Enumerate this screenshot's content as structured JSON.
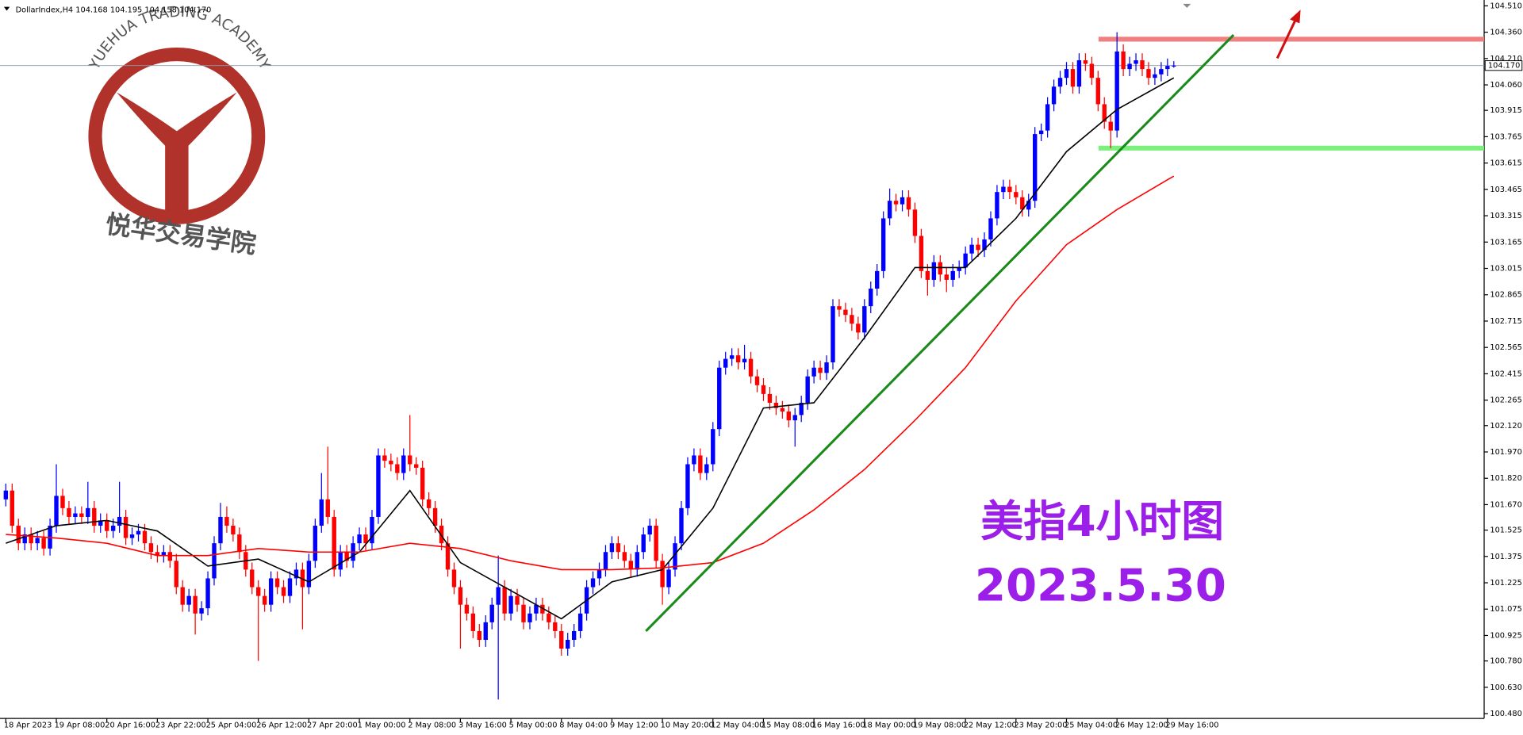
{
  "chart_data": {
    "type": "candlestick",
    "header": "DollarIndex,H4  104.168 104.195 104.158 104.170",
    "overlay_title": "美指4小时图",
    "overlay_date": "2023.5.30",
    "watermark": {
      "arc_text": "YUEHUA TRADING ACADEMY",
      "name": "悦华交易学院"
    },
    "up_color": "#0000ff",
    "down_color": "#ff0000",
    "ylim": [
      100.48,
      104.51
    ],
    "yticks": [
      {
        "value": 104.51,
        "label": "104.510"
      },
      {
        "value": 104.36,
        "label": "104.360"
      },
      {
        "value": 104.21,
        "label": "104.210"
      },
      {
        "value": 104.06,
        "label": "104.060"
      },
      {
        "value": 103.915,
        "label": "103.915"
      },
      {
        "value": 103.765,
        "label": "103.765"
      },
      {
        "value": 103.615,
        "label": "103.615"
      },
      {
        "value": 103.465,
        "label": "103.465"
      },
      {
        "value": 103.315,
        "label": "103.315"
      },
      {
        "value": 103.165,
        "label": "103.165"
      },
      {
        "value": 103.015,
        "label": "103.015"
      },
      {
        "value": 102.865,
        "label": "102.865"
      },
      {
        "value": 102.715,
        "label": "102.715"
      },
      {
        "value": 102.565,
        "label": "102.565"
      },
      {
        "value": 102.415,
        "label": "102.415"
      },
      {
        "value": 102.265,
        "label": "102.265"
      },
      {
        "value": 102.12,
        "label": "102.120"
      },
      {
        "value": 101.97,
        "label": "101.970"
      },
      {
        "value": 101.82,
        "label": "101.820"
      },
      {
        "value": 101.67,
        "label": "101.670"
      },
      {
        "value": 101.525,
        "label": "101.525"
      },
      {
        "value": 101.375,
        "label": "101.375"
      },
      {
        "value": 101.225,
        "label": "101.225"
      },
      {
        "value": 101.075,
        "label": "101.075"
      },
      {
        "value": 100.925,
        "label": "100.925"
      },
      {
        "value": 100.78,
        "label": "100.780"
      },
      {
        "value": 100.63,
        "label": "100.630"
      },
      {
        "value": 100.48,
        "label": "100.480"
      }
    ],
    "last_price": {
      "value": 104.17,
      "label": "104.170"
    },
    "levels": [
      {
        "value": 104.32,
        "color": "#f08080"
      },
      {
        "value": 103.7,
        "color": "#7cf07c"
      }
    ],
    "categories": [
      "18 Apr 2023",
      null,
      null,
      null,
      null,
      null,
      null,
      null,
      "19 Apr 08:00",
      null,
      null,
      null,
      null,
      null,
      null,
      null,
      "20 Apr 16:00",
      null,
      null,
      null,
      null,
      null,
      null,
      null,
      "23 Apr 22:00",
      null,
      null,
      null,
      null,
      null,
      null,
      null,
      "25 Apr 04:00",
      null,
      null,
      null,
      null,
      null,
      null,
      null,
      "26 Apr 12:00",
      null,
      null,
      null,
      null,
      null,
      null,
      null,
      "27 Apr 20:00",
      null,
      null,
      null,
      null,
      null,
      null,
      null,
      "1 May 00:00",
      null,
      null,
      null,
      null,
      null,
      null,
      null,
      "2 May 08:00",
      null,
      null,
      null,
      null,
      null,
      null,
      null,
      "3 May 16:00",
      null,
      null,
      null,
      null,
      null,
      null,
      null,
      "5 May 00:00",
      null,
      null,
      null,
      null,
      null,
      null,
      null,
      "8 May 04:00",
      null,
      null,
      null,
      null,
      null,
      null,
      null,
      "9 May 12:00",
      null,
      null,
      null,
      null,
      null,
      null,
      null,
      "10 May 20:00",
      null,
      null,
      null,
      null,
      null,
      null,
      null,
      "12 May 04:00",
      null,
      null,
      null,
      null,
      null,
      null,
      null,
      "15 May 08:00",
      null,
      null,
      null,
      null,
      null,
      null,
      null,
      "16 May 16:00",
      null,
      null,
      null,
      null,
      null,
      null,
      null,
      "18 May 00:00",
      null,
      null,
      null,
      null,
      null,
      null,
      null,
      "19 May 08:00",
      null,
      null,
      null,
      null,
      null,
      null,
      null,
      "22 May 12:00",
      null,
      null,
      null,
      null,
      null,
      null,
      null,
      "23 May 20:00",
      null,
      null,
      null,
      null,
      null,
      null,
      null,
      "25 May 04:00",
      null,
      null,
      null,
      null,
      null,
      null,
      null,
      "26 May 12:00",
      null,
      null,
      null,
      null,
      null,
      null,
      null,
      "29 May 16:00",
      null
    ],
    "open": [
      101.7,
      101.75,
      101.55,
      101.45,
      101.5,
      101.45,
      101.48,
      101.42,
      101.55,
      101.72,
      101.65,
      101.6,
      101.62,
      101.6,
      101.65,
      101.55,
      101.58,
      101.52,
      101.55,
      101.6,
      101.48,
      101.5,
      101.52,
      101.45,
      101.4,
      101.38,
      101.4,
      101.35,
      101.2,
      101.1,
      101.15,
      101.05,
      101.08,
      101.25,
      101.45,
      101.6,
      101.55,
      101.5,
      101.4,
      101.3,
      101.2,
      101.15,
      101.1,
      101.25,
      101.2,
      101.15,
      101.25,
      101.3,
      101.2,
      101.35,
      101.55,
      101.7,
      101.6,
      101.3,
      101.4,
      101.35,
      101.45,
      101.5,
      101.45,
      101.6,
      101.95,
      101.92,
      101.9,
      101.85,
      101.95,
      101.9,
      101.88,
      101.7,
      101.65,
      101.55,
      101.45,
      101.3,
      101.2,
      101.1,
      101.05,
      100.95,
      100.9,
      101,
      101.1,
      101.2,
      101.05,
      101.15,
      101.1,
      101,
      101.05,
      101.1,
      101.05,
      101,
      100.95,
      100.85,
      100.9,
      100.95,
      101.05,
      101.2,
      101.25,
      101.3,
      101.4,
      101.45,
      101.4,
      101.35,
      101.3,
      101.4,
      101.5,
      101.55,
      101.35,
      101.2,
      101.3,
      101.45,
      101.65,
      101.9,
      101.95,
      101.85,
      101.9,
      102.1,
      102.45,
      102.5,
      102.52,
      102.48,
      102.5,
      102.4,
      102.35,
      102.3,
      102.25,
      102.22,
      102.2,
      102.15,
      102.18,
      102.25,
      102.4,
      102.45,
      102.42,
      102.48,
      102.8,
      102.78,
      102.75,
      102.7,
      102.65,
      102.8,
      102.9,
      103,
      103.3,
      103.4,
      103.38,
      103.42,
      103.35,
      103.2,
      103,
      102.95,
      103.05,
      102.98,
      102.95,
      103,
      103.02,
      103.1,
      103.15,
      103.12,
      103.18,
      103.3,
      103.45,
      103.48,
      103.45,
      103.42,
      103.35,
      103.4,
      103.78,
      103.8,
      103.95,
      104.05,
      104.1,
      104.15,
      104.05,
      104.2,
      104.18,
      104.1,
      103.95,
      103.85,
      103.8,
      104.25,
      104.15,
      104.18,
      104.2,
      104.15,
      104.1,
      104.12,
      104.15,
      104.168
    ],
    "high": [
      101.79,
      101.79,
      101.59,
      101.54,
      101.54,
      101.52,
      101.52,
      101.59,
      101.9,
      101.76,
      101.69,
      101.66,
      101.66,
      101.8,
      101.69,
      101.62,
      101.62,
      101.59,
      101.8,
      101.64,
      101.54,
      101.56,
      101.56,
      101.49,
      101.44,
      101.44,
      101.44,
      101.39,
      101.24,
      101.19,
      101.19,
      101.12,
      101.29,
      101.49,
      101.68,
      101.66,
      101.59,
      101.54,
      101.44,
      101.34,
      101.24,
      101.19,
      101.29,
      101.29,
      101.24,
      101.29,
      101.34,
      101.34,
      101.39,
      101.59,
      101.85,
      102,
      101.64,
      101.44,
      101.44,
      101.49,
      101.54,
      101.54,
      101.64,
      101.99,
      101.99,
      101.96,
      101.94,
      101.99,
      102.18,
      101.94,
      101.92,
      101.74,
      101.69,
      101.59,
      101.49,
      101.34,
      101.24,
      101.14,
      101.09,
      100.99,
      101.04,
      101.14,
      101.38,
      101.24,
      101.19,
      101.19,
      101.14,
      101.09,
      101.14,
      101.14,
      101.09,
      101.04,
      100.99,
      100.94,
      100.99,
      101.09,
      101.24,
      101.29,
      101.34,
      101.44,
      101.49,
      101.49,
      101.44,
      101.39,
      101.44,
      101.54,
      101.59,
      101.59,
      101.39,
      101.34,
      101.49,
      101.69,
      101.94,
      101.99,
      101.99,
      101.94,
      102.14,
      102.49,
      102.54,
      102.56,
      102.56,
      102.58,
      102.54,
      102.44,
      102.39,
      102.34,
      102.29,
      102.26,
      102.24,
      102.22,
      102.29,
      102.44,
      102.49,
      102.49,
      102.52,
      102.84,
      102.84,
      102.82,
      102.79,
      102.74,
      102.84,
      102.94,
      103.04,
      103.34,
      103.47,
      103.44,
      103.46,
      103.46,
      103.39,
      103.24,
      103.04,
      103.09,
      103.09,
      103.02,
      103.04,
      103.06,
      103.14,
      103.19,
      103.19,
      103.22,
      103.34,
      103.49,
      103.52,
      103.52,
      103.49,
      103.46,
      103.44,
      103.82,
      103.84,
      103.99,
      104.09,
      104.14,
      104.19,
      104.19,
      104.24,
      104.24,
      104.22,
      104.14,
      103.99,
      103.89,
      104.36,
      104.29,
      104.22,
      104.24,
      104.24,
      104.19,
      104.16,
      104.19,
      104.21,
      104.195
    ],
    "low": [
      101.66,
      101.51,
      101.41,
      101.41,
      101.41,
      101.41,
      101.38,
      101.38,
      101.51,
      101.61,
      101.56,
      101.56,
      101.56,
      101.56,
      101.51,
      101.51,
      101.48,
      101.48,
      101.51,
      101.44,
      101.44,
      101.46,
      101.41,
      101.36,
      101.34,
      101.34,
      101.31,
      101.16,
      101.06,
      101.06,
      100.93,
      101.01,
      101.04,
      101.21,
      101.41,
      101.51,
      101.46,
      101.36,
      101.26,
      101.16,
      100.78,
      101.06,
      101.06,
      101.16,
      101.11,
      101.11,
      101.21,
      100.96,
      101.16,
      101.31,
      101.51,
      101.56,
      101.26,
      101.26,
      101.31,
      101.31,
      101.41,
      101.41,
      101.41,
      101.56,
      101.88,
      101.86,
      101.81,
      101.81,
      101.86,
      101.84,
      101.66,
      101.61,
      101.51,
      101.41,
      101.26,
      101.16,
      100.85,
      101.01,
      100.91,
      100.86,
      100.86,
      100.96,
      100.56,
      101.01,
      101.01,
      101.06,
      100.96,
      100.96,
      101.01,
      101.01,
      100.96,
      100.91,
      100.81,
      100.81,
      100.86,
      100.91,
      101.01,
      101.16,
      101.21,
      101.26,
      101.36,
      101.36,
      101.31,
      101.26,
      101.26,
      101.36,
      101.46,
      101.31,
      101.1,
      101.16,
      101.26,
      101.41,
      101.61,
      101.86,
      101.81,
      101.81,
      101.86,
      102.06,
      102.41,
      102.46,
      102.44,
      102.44,
      102.36,
      102.31,
      102.26,
      102.21,
      102.18,
      102.16,
      102.11,
      102,
      102.14,
      102.21,
      102.36,
      102.38,
      102.38,
      102.44,
      102.74,
      102.71,
      102.66,
      102.61,
      102.61,
      102.76,
      102.86,
      102.96,
      103.26,
      103.34,
      103.34,
      103.31,
      103.16,
      102.96,
      102.86,
      102.91,
      102.94,
      102.88,
      102.91,
      102.96,
      102.98,
      103.06,
      103.08,
      103.08,
      103.14,
      103.26,
      103.41,
      103.41,
      103.38,
      103.31,
      103.31,
      103.36,
      103.74,
      103.76,
      103.91,
      104.01,
      104.06,
      104.01,
      104.01,
      104.14,
      104.06,
      103.91,
      103.81,
      103.7,
      103.76,
      104.11,
      104.11,
      104.14,
      104.11,
      104.06,
      104.06,
      104.08,
      104.11,
      104.158
    ],
    "close": [
      101.75,
      101.55,
      101.45,
      101.5,
      101.45,
      101.48,
      101.42,
      101.55,
      101.72,
      101.65,
      101.6,
      101.62,
      101.6,
      101.65,
      101.55,
      101.58,
      101.52,
      101.55,
      101.6,
      101.48,
      101.5,
      101.52,
      101.45,
      101.4,
      101.38,
      101.4,
      101.35,
      101.2,
      101.1,
      101.15,
      101.05,
      101.08,
      101.25,
      101.45,
      101.6,
      101.55,
      101.5,
      101.4,
      101.3,
      101.2,
      101.15,
      101.1,
      101.25,
      101.2,
      101.15,
      101.25,
      101.3,
      101.2,
      101.35,
      101.55,
      101.7,
      101.6,
      101.3,
      101.4,
      101.35,
      101.45,
      101.5,
      101.45,
      101.6,
      101.95,
      101.92,
      101.9,
      101.85,
      101.95,
      101.9,
      101.88,
      101.7,
      101.65,
      101.55,
      101.45,
      101.3,
      101.2,
      101.1,
      101.05,
      100.95,
      100.9,
      101,
      101.1,
      101.2,
      101.05,
      101.15,
      101.1,
      101,
      101.05,
      101.1,
      101.05,
      101,
      100.95,
      100.85,
      100.9,
      100.95,
      101.05,
      101.2,
      101.25,
      101.3,
      101.4,
      101.45,
      101.4,
      101.35,
      101.3,
      101.4,
      101.5,
      101.55,
      101.35,
      101.2,
      101.3,
      101.45,
      101.65,
      101.9,
      101.95,
      101.85,
      101.9,
      102.1,
      102.45,
      102.5,
      102.52,
      102.48,
      102.5,
      102.4,
      102.35,
      102.3,
      102.25,
      102.22,
      102.2,
      102.15,
      102.18,
      102.25,
      102.4,
      102.45,
      102.42,
      102.48,
      102.8,
      102.78,
      102.75,
      102.7,
      102.65,
      102.8,
      102.9,
      103,
      103.3,
      103.4,
      103.38,
      103.42,
      103.35,
      103.2,
      103,
      102.95,
      103.05,
      102.98,
      102.95,
      103,
      103.02,
      103.1,
      103.15,
      103.12,
      103.18,
      103.3,
      103.45,
      103.48,
      103.45,
      103.42,
      103.35,
      103.4,
      103.78,
      103.8,
      103.95,
      104.05,
      104.1,
      104.15,
      104.05,
      104.2,
      104.18,
      104.1,
      103.95,
      103.85,
      103.8,
      104.25,
      104.15,
      104.18,
      104.2,
      104.15,
      104.1,
      104.12,
      104.15,
      104.168,
      104.17
    ],
    "series": [
      {
        "color": "#000000",
        "x": [
          0,
          8,
          16,
          24,
          32,
          40,
          48,
          56,
          64,
          72,
          80,
          88,
          96,
          104,
          112,
          120,
          128,
          136,
          144,
          152,
          160,
          168,
          176,
          184,
          185
        ],
        "values": [
          101.45,
          101.55,
          101.58,
          101.52,
          101.32,
          101.36,
          101.23,
          101.4,
          101.75,
          101.34,
          101.18,
          101.02,
          101.23,
          101.3,
          101.65,
          102.22,
          102.25,
          102.62,
          103.02,
          103.02,
          103.3,
          103.68,
          103.92,
          104.08,
          104.1
        ]
      },
      {
        "color": "#ff0000",
        "x": [
          0,
          8,
          16,
          24,
          32,
          40,
          48,
          56,
          64,
          72,
          80,
          88,
          96,
          104,
          112,
          120,
          128,
          136,
          144,
          152,
          160,
          168,
          176,
          184,
          185
        ],
        "values": [
          101.5,
          101.48,
          101.45,
          101.38,
          101.38,
          101.42,
          101.4,
          101.4,
          101.45,
          101.42,
          101.35,
          101.3,
          101.3,
          101.31,
          101.34,
          101.45,
          101.64,
          101.87,
          102.15,
          102.45,
          102.83,
          103.15,
          103.35,
          103.52,
          103.54
        ]
      }
    ]
  }
}
